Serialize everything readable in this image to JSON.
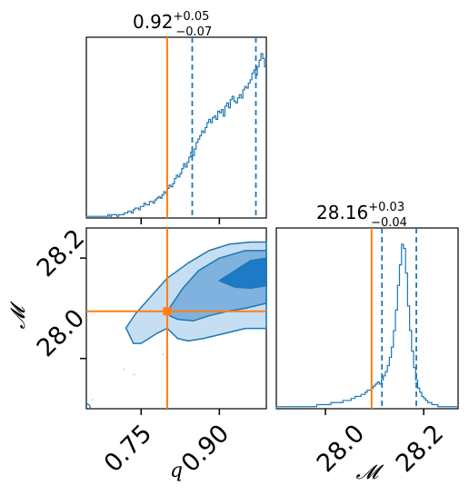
{
  "chart_data": [
    {
      "type": "histogram",
      "panel": "q-marginal",
      "title": {
        "main": "0.92",
        "sup": "+0.05",
        "sub": "−0.07"
      },
      "xlim": [
        0.645,
        0.99
      ],
      "bins": {
        "start": 0.645,
        "width": 0.00345
      },
      "counts": [
        1,
        1,
        1,
        1,
        1,
        1,
        1,
        1,
        1,
        1,
        1,
        1,
        2,
        1,
        2,
        2,
        2,
        1,
        2,
        2,
        2,
        3,
        3,
        4,
        4,
        3,
        5,
        6,
        6,
        5,
        7,
        7,
        9,
        8,
        8,
        10,
        10,
        9,
        11,
        12,
        13,
        12,
        14,
        16,
        15,
        18,
        20,
        19,
        21,
        24,
        26,
        25,
        27,
        30,
        33,
        31,
        34,
        37,
        40,
        38,
        42,
        46,
        48,
        50,
        53,
        52,
        55,
        58,
        60,
        58,
        61,
        62,
        60,
        65,
        64,
        66,
        62,
        68,
        70,
        67,
        72,
        74,
        71,
        70,
        73,
        75,
        73,
        78,
        80,
        79,
        82,
        84,
        88,
        90,
        87,
        92,
        96,
        100,
        97,
        92
      ],
      "count_max": 100,
      "truth_line": 0.8,
      "quantile_lines": [
        0.848,
        0.97
      ]
    },
    {
      "type": "histogram",
      "panel": "mc-marginal",
      "title": {
        "main": "28.16",
        "sup": "+0.03",
        "sub": "−0.04"
      },
      "xlim": [
        27.9,
        28.27
      ],
      "bins": {
        "start": 27.9,
        "width": 0.00411
      },
      "counts": [
        1,
        1,
        1,
        1,
        1,
        1,
        1,
        1,
        1,
        1,
        1,
        1,
        1,
        1,
        1,
        1,
        1,
        1,
        1,
        1,
        2,
        2,
        2,
        2,
        2,
        2,
        2,
        3,
        3,
        3,
        3,
        3,
        3,
        4,
        4,
        4,
        4,
        5,
        5,
        6,
        6,
        6,
        7,
        7,
        8,
        9,
        9,
        10,
        11,
        12,
        13,
        12,
        14,
        16,
        18,
        21,
        25,
        30,
        38,
        48,
        60,
        70,
        80,
        78,
        66,
        50,
        38,
        28,
        20,
        14,
        10,
        8,
        6,
        5,
        4,
        3,
        3,
        2,
        2,
        2,
        1,
        1,
        1,
        1,
        1,
        1,
        1,
        1,
        1,
        1
      ],
      "count_max": 80,
      "truth_line": 28.094,
      "quantile_lines": [
        28.115,
        28.185
      ]
    },
    {
      "type": "contour",
      "panel": "q-mc-joint",
      "xlim": [
        0.645,
        0.99
      ],
      "ylim": [
        27.9,
        28.26
      ],
      "xticks": [
        "0.75",
        "0.90"
      ],
      "yticks": [
        "28.0",
        "28.2"
      ],
      "xlabel": "q",
      "ylabel": "𝓜",
      "mc_xticks": [
        "28.0",
        "28.2"
      ],
      "mc_xlabel": "𝓜",
      "truth_point": {
        "q": 0.8,
        "mc": 28.094
      },
      "levels": [
        {
          "level": "outer",
          "fill": "#c6def2",
          "points": [
            [
              0.721,
              28.061
            ],
            [
              0.74,
              28.09
            ],
            [
              0.77,
              28.125
            ],
            [
              0.8,
              28.16
            ],
            [
              0.84,
              28.19
            ],
            [
              0.88,
              28.215
            ],
            [
              0.92,
              28.228
            ],
            [
              0.96,
              28.232
            ],
            [
              0.99,
              28.232
            ],
            [
              0.99,
              28.06
            ],
            [
              0.95,
              28.06
            ],
            [
              0.91,
              28.05
            ],
            [
              0.87,
              28.04
            ],
            [
              0.84,
              28.035
            ],
            [
              0.82,
              28.04
            ],
            [
              0.8,
              28.06
            ],
            [
              0.78,
              28.05
            ],
            [
              0.75,
              28.03
            ],
            [
              0.735,
              28.03
            ]
          ]
        },
        {
          "level": "middle",
          "fill": "#7fb2df",
          "points": [
            [
              0.8,
              28.094
            ],
            [
              0.83,
              28.14
            ],
            [
              0.86,
              28.175
            ],
            [
              0.9,
              28.2
            ],
            [
              0.95,
              28.215
            ],
            [
              0.99,
              28.215
            ],
            [
              0.99,
              28.11
            ],
            [
              0.95,
              28.1
            ],
            [
              0.92,
              28.095
            ],
            [
              0.88,
              28.085
            ],
            [
              0.85,
              28.075
            ],
            [
              0.82,
              28.078
            ],
            [
              0.805,
              28.085
            ]
          ]
        },
        {
          "level": "inner",
          "fill": "#1c7ac7",
          "points": [
            [
              0.9,
              28.155
            ],
            [
              0.93,
              28.175
            ],
            [
              0.96,
              28.195
            ],
            [
              0.99,
              28.2
            ],
            [
              0.99,
              28.145
            ],
            [
              0.96,
              28.14
            ],
            [
              0.93,
              28.142
            ]
          ]
        }
      ]
    }
  ]
}
